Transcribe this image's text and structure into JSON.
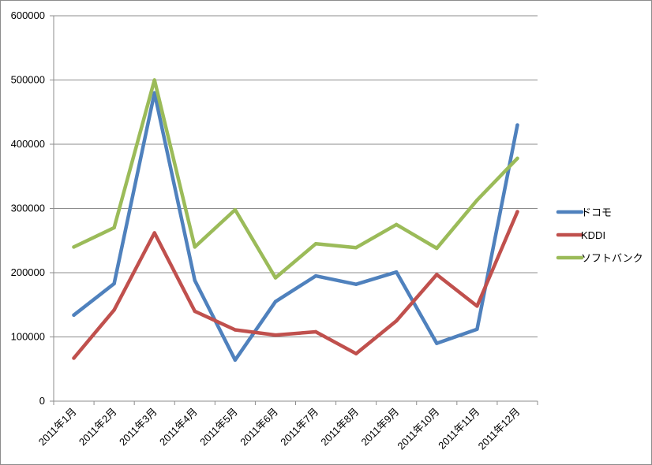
{
  "chart_data": {
    "type": "line",
    "title": "",
    "xlabel": "",
    "ylabel": "",
    "ylim": [
      0,
      600000
    ],
    "yticks": [
      0,
      100000,
      200000,
      300000,
      400000,
      500000,
      600000
    ],
    "grid": true,
    "legend_position": "right",
    "categories": [
      "2011年1月",
      "2011年2月",
      "2011年3月",
      "2011年4月",
      "2011年5月",
      "2011年6月",
      "2011年7月",
      "2011年8月",
      "2011年9月",
      "2011年10月",
      "2011年11月",
      "2011年12月"
    ],
    "series": [
      {
        "name": "ドコモ",
        "color": "#4f81bd",
        "values": [
          134000,
          183000,
          480000,
          188000,
          64000,
          155000,
          195000,
          182000,
          201000,
          90000,
          112000,
          430000
        ]
      },
      {
        "name": "KDDI",
        "color": "#c0504d",
        "values": [
          67000,
          142000,
          262000,
          140000,
          111000,
          103000,
          108000,
          74000,
          125000,
          197000,
          148000,
          295000
        ]
      },
      {
        "name": "ソフトバンク",
        "color": "#9bbb59",
        "values": [
          240000,
          270000,
          500000,
          240000,
          298000,
          192000,
          245000,
          239000,
          275000,
          238000,
          313000,
          378000
        ]
      }
    ]
  }
}
